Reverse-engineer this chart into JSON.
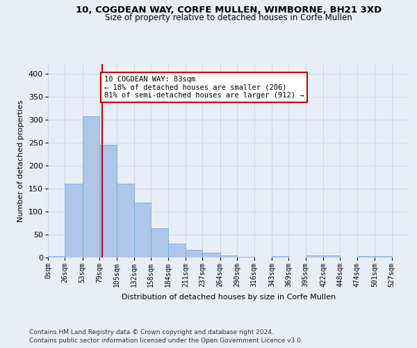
{
  "title1": "10, COGDEAN WAY, CORFE MULLEN, WIMBORNE, BH21 3XD",
  "title2": "Size of property relative to detached houses in Corfe Mullen",
  "xlabel": "Distribution of detached houses by size in Corfe Mullen",
  "ylabel": "Number of detached properties",
  "footer1": "Contains HM Land Registry data © Crown copyright and database right 2024.",
  "footer2": "Contains public sector information licensed under the Open Government Licence v3.0.",
  "bin_labels": [
    "0sqm",
    "26sqm",
    "53sqm",
    "79sqm",
    "105sqm",
    "132sqm",
    "158sqm",
    "184sqm",
    "211sqm",
    "237sqm",
    "264sqm",
    "290sqm",
    "316sqm",
    "343sqm",
    "369sqm",
    "395sqm",
    "422sqm",
    "448sqm",
    "474sqm",
    "501sqm",
    "527sqm"
  ],
  "bar_values": [
    3,
    160,
    307,
    245,
    160,
    120,
    63,
    30,
    16,
    10,
    4,
    1,
    0,
    3,
    0,
    5,
    4,
    0,
    3,
    3,
    0
  ],
  "bar_color": "#aec6e8",
  "bar_edge_color": "#6fa8d6",
  "grid_color": "#d0d8e8",
  "background_color": "#e8eef8",
  "vline_x": 83,
  "vline_color": "#cc0000",
  "annotation_text": "10 COGDEAN WAY: 83sqm\n← 18% of detached houses are smaller (206)\n81% of semi-detached houses are larger (912) →",
  "annotation_box_color": "#ffffff",
  "annotation_box_edge": "#cc0000",
  "ylim": [
    0,
    420
  ],
  "yticks": [
    0,
    50,
    100,
    150,
    200,
    250,
    300,
    350,
    400
  ],
  "bin_edges": [
    0,
    26,
    53,
    79,
    105,
    132,
    158,
    184,
    211,
    237,
    264,
    290,
    316,
    343,
    369,
    395,
    422,
    448,
    474,
    501,
    527,
    553
  ]
}
